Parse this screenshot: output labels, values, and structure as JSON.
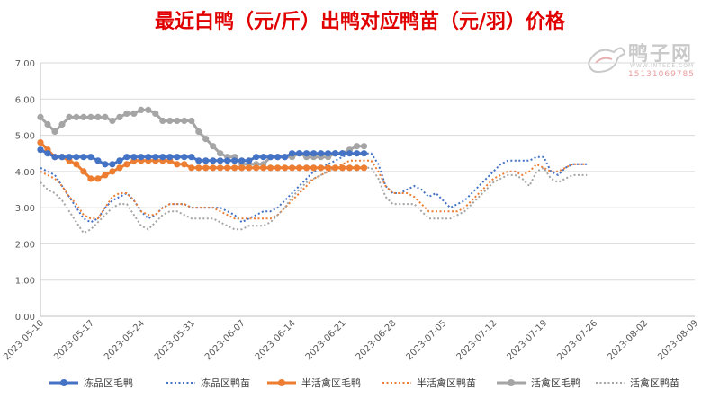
{
  "chart_data": {
    "type": "line",
    "title": "最近白鸭（元/斤）出鸭对应鸭苗（元/羽）价格",
    "watermark": {
      "name": "鸭子网",
      "url": "WWW.INTEDE.COM",
      "phone": "15131069785"
    },
    "ylim": [
      0,
      7
    ],
    "yticks": [
      "0.00",
      "1.00",
      "2.00",
      "3.00",
      "4.00",
      "5.00",
      "6.00",
      "7.00"
    ],
    "x_start": "2023-05-10",
    "x_days": 91,
    "xticks": [
      "2023-05-10",
      "2023-05-17",
      "2023-05-24",
      "2023-05-31",
      "2023-06-07",
      "2023-06-14",
      "2023-06-21",
      "2023-06-28",
      "2023-07-05",
      "2023-07-12",
      "2023-07-19",
      "2023-07-26",
      "2023-08-02",
      "2023-08-09"
    ],
    "legend_position": "bottom",
    "grid": true,
    "series": [
      {
        "name": "冻品区毛鸭",
        "color": "#4472c4",
        "style": "solid",
        "x": [
          "2023-05-10",
          "2023-05-11",
          "2023-05-12",
          "2023-05-13",
          "2023-05-14",
          "2023-05-15",
          "2023-05-16",
          "2023-05-17",
          "2023-05-18",
          "2023-05-19",
          "2023-05-20",
          "2023-05-21",
          "2023-05-22",
          "2023-05-23",
          "2023-05-24",
          "2023-05-25",
          "2023-05-26",
          "2023-05-27",
          "2023-05-28",
          "2023-05-29",
          "2023-05-30",
          "2023-05-31",
          "2023-06-01",
          "2023-06-02",
          "2023-06-03",
          "2023-06-04",
          "2023-06-05",
          "2023-06-06",
          "2023-06-07",
          "2023-06-08",
          "2023-06-09",
          "2023-06-10",
          "2023-06-11",
          "2023-06-12",
          "2023-06-13",
          "2023-06-14",
          "2023-06-15",
          "2023-06-16",
          "2023-06-17",
          "2023-06-18",
          "2023-06-19",
          "2023-06-20",
          "2023-06-21",
          "2023-06-22",
          "2023-06-23",
          "2023-06-24"
        ],
        "y": [
          4.6,
          4.5,
          4.4,
          4.4,
          4.4,
          4.4,
          4.4,
          4.4,
          4.3,
          4.2,
          4.2,
          4.3,
          4.4,
          4.4,
          4.4,
          4.4,
          4.4,
          4.4,
          4.4,
          4.4,
          4.4,
          4.4,
          4.3,
          4.3,
          4.3,
          4.3,
          4.3,
          4.3,
          4.3,
          4.3,
          4.4,
          4.4,
          4.4,
          4.4,
          4.4,
          4.5,
          4.5,
          4.5,
          4.5,
          4.5,
          4.5,
          4.5,
          4.5,
          4.5,
          4.5,
          4.5
        ]
      },
      {
        "name": "冻品区鸭苗",
        "color": "#4472c4",
        "style": "dotted",
        "x": [
          "2023-05-10",
          "2023-05-11",
          "2023-05-12",
          "2023-05-13",
          "2023-05-14",
          "2023-05-15",
          "2023-05-16",
          "2023-05-17",
          "2023-05-18",
          "2023-05-19",
          "2023-05-20",
          "2023-05-21",
          "2023-05-22",
          "2023-05-23",
          "2023-05-24",
          "2023-05-25",
          "2023-05-26",
          "2023-05-27",
          "2023-05-28",
          "2023-05-29",
          "2023-05-30",
          "2023-05-31",
          "2023-06-01",
          "2023-06-02",
          "2023-06-03",
          "2023-06-04",
          "2023-06-05",
          "2023-06-06",
          "2023-06-07",
          "2023-06-08",
          "2023-06-09",
          "2023-06-10",
          "2023-06-11",
          "2023-06-12",
          "2023-06-13",
          "2023-06-14",
          "2023-06-15",
          "2023-06-16",
          "2023-06-17",
          "2023-06-18",
          "2023-06-19",
          "2023-06-20",
          "2023-06-21",
          "2023-06-22",
          "2023-06-23",
          "2023-06-24",
          "2023-06-25",
          "2023-06-26",
          "2023-06-27",
          "2023-06-28",
          "2023-06-29",
          "2023-06-30",
          "2023-07-01",
          "2023-07-02",
          "2023-07-03",
          "2023-07-04",
          "2023-07-05",
          "2023-07-06",
          "2023-07-07",
          "2023-07-08",
          "2023-07-09",
          "2023-07-10",
          "2023-07-11",
          "2023-07-12",
          "2023-07-13",
          "2023-07-14",
          "2023-07-15",
          "2023-07-16",
          "2023-07-17",
          "2023-07-18",
          "2023-07-19",
          "2023-07-20",
          "2023-07-21",
          "2023-07-22",
          "2023-07-23",
          "2023-07-24",
          "2023-07-25"
        ],
        "y": [
          4.1,
          4.0,
          3.9,
          3.6,
          3.3,
          3.0,
          2.7,
          2.6,
          2.7,
          3.0,
          3.2,
          3.3,
          3.4,
          3.2,
          2.9,
          2.7,
          2.8,
          3.0,
          3.1,
          3.1,
          3.1,
          3.0,
          3.0,
          3.0,
          3.0,
          3.0,
          2.9,
          2.8,
          2.6,
          2.7,
          2.8,
          2.9,
          2.9,
          3.0,
          3.2,
          3.4,
          3.6,
          3.8,
          4.0,
          4.1,
          4.2,
          4.3,
          4.4,
          4.5,
          4.5,
          4.5,
          4.5,
          4.2,
          3.6,
          3.4,
          3.4,
          3.5,
          3.6,
          3.5,
          3.3,
          3.4,
          3.2,
          3.0,
          3.1,
          3.2,
          3.4,
          3.6,
          3.8,
          4.0,
          4.2,
          4.3,
          4.3,
          4.3,
          4.3,
          4.4,
          4.4,
          4.0,
          3.9,
          4.1,
          4.2,
          4.2,
          4.2
        ]
      },
      {
        "name": "半活禽区毛鸭",
        "color": "#ed7d31",
        "style": "solid",
        "x": [
          "2023-05-10",
          "2023-05-11",
          "2023-05-12",
          "2023-05-13",
          "2023-05-14",
          "2023-05-15",
          "2023-05-16",
          "2023-05-17",
          "2023-05-18",
          "2023-05-19",
          "2023-05-20",
          "2023-05-21",
          "2023-05-22",
          "2023-05-23",
          "2023-05-24",
          "2023-05-25",
          "2023-05-26",
          "2023-05-27",
          "2023-05-28",
          "2023-05-29",
          "2023-05-30",
          "2023-05-31",
          "2023-06-01",
          "2023-06-02",
          "2023-06-03",
          "2023-06-04",
          "2023-06-05",
          "2023-06-06",
          "2023-06-07",
          "2023-06-08",
          "2023-06-09",
          "2023-06-10",
          "2023-06-11",
          "2023-06-12",
          "2023-06-13",
          "2023-06-14",
          "2023-06-15",
          "2023-06-16",
          "2023-06-17",
          "2023-06-18",
          "2023-06-19",
          "2023-06-20",
          "2023-06-21",
          "2023-06-22",
          "2023-06-23",
          "2023-06-24"
        ],
        "y": [
          4.8,
          4.6,
          4.4,
          4.4,
          4.3,
          4.2,
          4.0,
          3.8,
          3.8,
          3.9,
          4.0,
          4.1,
          4.2,
          4.3,
          4.3,
          4.3,
          4.3,
          4.3,
          4.3,
          4.2,
          4.2,
          4.1,
          4.1,
          4.1,
          4.1,
          4.1,
          4.1,
          4.1,
          4.1,
          4.1,
          4.1,
          4.1,
          4.1,
          4.1,
          4.1,
          4.1,
          4.1,
          4.1,
          4.1,
          4.1,
          4.1,
          4.1,
          4.1,
          4.1,
          4.1,
          4.1
        ]
      },
      {
        "name": "半活禽区鸭苗",
        "color": "#ed7d31",
        "style": "dotted",
        "x": [
          "2023-05-10",
          "2023-05-11",
          "2023-05-12",
          "2023-05-13",
          "2023-05-14",
          "2023-05-15",
          "2023-05-16",
          "2023-05-17",
          "2023-05-18",
          "2023-05-19",
          "2023-05-20",
          "2023-05-21",
          "2023-05-22",
          "2023-05-23",
          "2023-05-24",
          "2023-05-25",
          "2023-05-26",
          "2023-05-27",
          "2023-05-28",
          "2023-05-29",
          "2023-05-30",
          "2023-05-31",
          "2023-06-01",
          "2023-06-02",
          "2023-06-03",
          "2023-06-04",
          "2023-06-05",
          "2023-06-06",
          "2023-06-07",
          "2023-06-08",
          "2023-06-09",
          "2023-06-10",
          "2023-06-11",
          "2023-06-12",
          "2023-06-13",
          "2023-06-14",
          "2023-06-15",
          "2023-06-16",
          "2023-06-17",
          "2023-06-18",
          "2023-06-19",
          "2023-06-20",
          "2023-06-21",
          "2023-06-22",
          "2023-06-23",
          "2023-06-24",
          "2023-06-25",
          "2023-06-26",
          "2023-06-27",
          "2023-06-28",
          "2023-06-29",
          "2023-06-30",
          "2023-07-01",
          "2023-07-02",
          "2023-07-03",
          "2023-07-04",
          "2023-07-05",
          "2023-07-06",
          "2023-07-07",
          "2023-07-08",
          "2023-07-09",
          "2023-07-10",
          "2023-07-11",
          "2023-07-12",
          "2023-07-13",
          "2023-07-14",
          "2023-07-15",
          "2023-07-16",
          "2023-07-17",
          "2023-07-18",
          "2023-07-19",
          "2023-07-20",
          "2023-07-21",
          "2023-07-22",
          "2023-07-23",
          "2023-07-24",
          "2023-07-25"
        ],
        "y": [
          4.0,
          3.9,
          3.8,
          3.6,
          3.3,
          3.1,
          2.8,
          2.7,
          2.7,
          3.0,
          3.3,
          3.4,
          3.4,
          3.2,
          2.9,
          2.8,
          2.8,
          3.0,
          3.1,
          3.1,
          3.1,
          3.0,
          3.0,
          3.0,
          3.0,
          2.9,
          2.8,
          2.7,
          2.7,
          2.7,
          2.7,
          2.7,
          2.7,
          2.8,
          3.0,
          3.2,
          3.4,
          3.6,
          3.8,
          3.9,
          4.0,
          4.1,
          4.2,
          4.3,
          4.3,
          4.3,
          4.3,
          4.0,
          3.6,
          3.4,
          3.4,
          3.4,
          3.3,
          3.1,
          2.9,
          2.9,
          2.9,
          2.9,
          2.9,
          3.0,
          3.2,
          3.4,
          3.6,
          3.8,
          3.9,
          4.0,
          4.0,
          3.9,
          4.0,
          4.2,
          4.1,
          4.0,
          4.0,
          4.1,
          4.2,
          4.2,
          4.2
        ]
      },
      {
        "name": "活禽区毛鸭",
        "color": "#a5a5a5",
        "style": "solid",
        "x": [
          "2023-05-10",
          "2023-05-11",
          "2023-05-12",
          "2023-05-13",
          "2023-05-14",
          "2023-05-15",
          "2023-05-16",
          "2023-05-17",
          "2023-05-18",
          "2023-05-19",
          "2023-05-20",
          "2023-05-21",
          "2023-05-22",
          "2023-05-23",
          "2023-05-24",
          "2023-05-25",
          "2023-05-26",
          "2023-05-27",
          "2023-05-28",
          "2023-05-29",
          "2023-05-30",
          "2023-05-31",
          "2023-06-01",
          "2023-06-02",
          "2023-06-03",
          "2023-06-04",
          "2023-06-05",
          "2023-06-06",
          "2023-06-07",
          "2023-06-08",
          "2023-06-09",
          "2023-06-10",
          "2023-06-11",
          "2023-06-12",
          "2023-06-13",
          "2023-06-14",
          "2023-06-15",
          "2023-06-16",
          "2023-06-17",
          "2023-06-18",
          "2023-06-19",
          "2023-06-20",
          "2023-06-21",
          "2023-06-22",
          "2023-06-23",
          "2023-06-24"
        ],
        "y": [
          5.5,
          5.3,
          5.1,
          5.3,
          5.5,
          5.5,
          5.5,
          5.5,
          5.5,
          5.5,
          5.4,
          5.5,
          5.6,
          5.6,
          5.7,
          5.7,
          5.6,
          5.4,
          5.4,
          5.4,
          5.4,
          5.4,
          5.1,
          4.9,
          4.7,
          4.5,
          4.4,
          4.4,
          4.2,
          4.2,
          4.2,
          4.2,
          4.4,
          4.4,
          4.4,
          4.4,
          4.5,
          4.4,
          4.4,
          4.4,
          4.4,
          4.5,
          4.5,
          4.6,
          4.7,
          4.7
        ]
      },
      {
        "name": "活禽区鸭苗",
        "color": "#a5a5a5",
        "style": "dotted",
        "x": [
          "2023-05-10",
          "2023-05-11",
          "2023-05-12",
          "2023-05-13",
          "2023-05-14",
          "2023-05-15",
          "2023-05-16",
          "2023-05-17",
          "2023-05-18",
          "2023-05-19",
          "2023-05-20",
          "2023-05-21",
          "2023-05-22",
          "2023-05-23",
          "2023-05-24",
          "2023-05-25",
          "2023-05-26",
          "2023-05-27",
          "2023-05-28",
          "2023-05-29",
          "2023-05-30",
          "2023-05-31",
          "2023-06-01",
          "2023-06-02",
          "2023-06-03",
          "2023-06-04",
          "2023-06-05",
          "2023-06-06",
          "2023-06-07",
          "2023-06-08",
          "2023-06-09",
          "2023-06-10",
          "2023-06-11",
          "2023-06-12",
          "2023-06-13",
          "2023-06-14",
          "2023-06-15",
          "2023-06-16",
          "2023-06-17",
          "2023-06-18",
          "2023-06-19",
          "2023-06-20",
          "2023-06-21",
          "2023-06-22",
          "2023-06-23",
          "2023-06-24",
          "2023-06-25",
          "2023-06-26",
          "2023-06-27",
          "2023-06-28",
          "2023-06-29",
          "2023-06-30",
          "2023-07-01",
          "2023-07-02",
          "2023-07-03",
          "2023-07-04",
          "2023-07-05",
          "2023-07-06",
          "2023-07-07",
          "2023-07-08",
          "2023-07-09",
          "2023-07-10",
          "2023-07-11",
          "2023-07-12",
          "2023-07-13",
          "2023-07-14",
          "2023-07-15",
          "2023-07-16",
          "2023-07-17",
          "2023-07-18",
          "2023-07-19",
          "2023-07-20",
          "2023-07-21",
          "2023-07-22",
          "2023-07-23",
          "2023-07-24",
          "2023-07-25"
        ],
        "y": [
          3.7,
          3.5,
          3.4,
          3.2,
          2.9,
          2.6,
          2.3,
          2.4,
          2.6,
          2.8,
          3.0,
          3.1,
          3.1,
          2.8,
          2.5,
          2.4,
          2.6,
          2.8,
          2.9,
          2.9,
          2.8,
          2.7,
          2.7,
          2.7,
          2.7,
          2.6,
          2.5,
          2.4,
          2.4,
          2.5,
          2.5,
          2.5,
          2.6,
          2.8,
          3.0,
          3.3,
          3.5,
          3.7,
          3.8,
          3.9,
          4.0,
          4.1,
          4.1,
          4.1,
          4.1,
          4.1,
          4.1,
          3.8,
          3.3,
          3.1,
          3.1,
          3.1,
          3.1,
          2.9,
          2.7,
          2.7,
          2.7,
          2.7,
          2.8,
          2.9,
          3.1,
          3.3,
          3.5,
          3.7,
          3.8,
          3.9,
          3.9,
          3.8,
          3.6,
          4.0,
          4.1,
          3.8,
          3.7,
          3.8,
          3.9,
          3.9,
          3.9
        ]
      }
    ]
  }
}
